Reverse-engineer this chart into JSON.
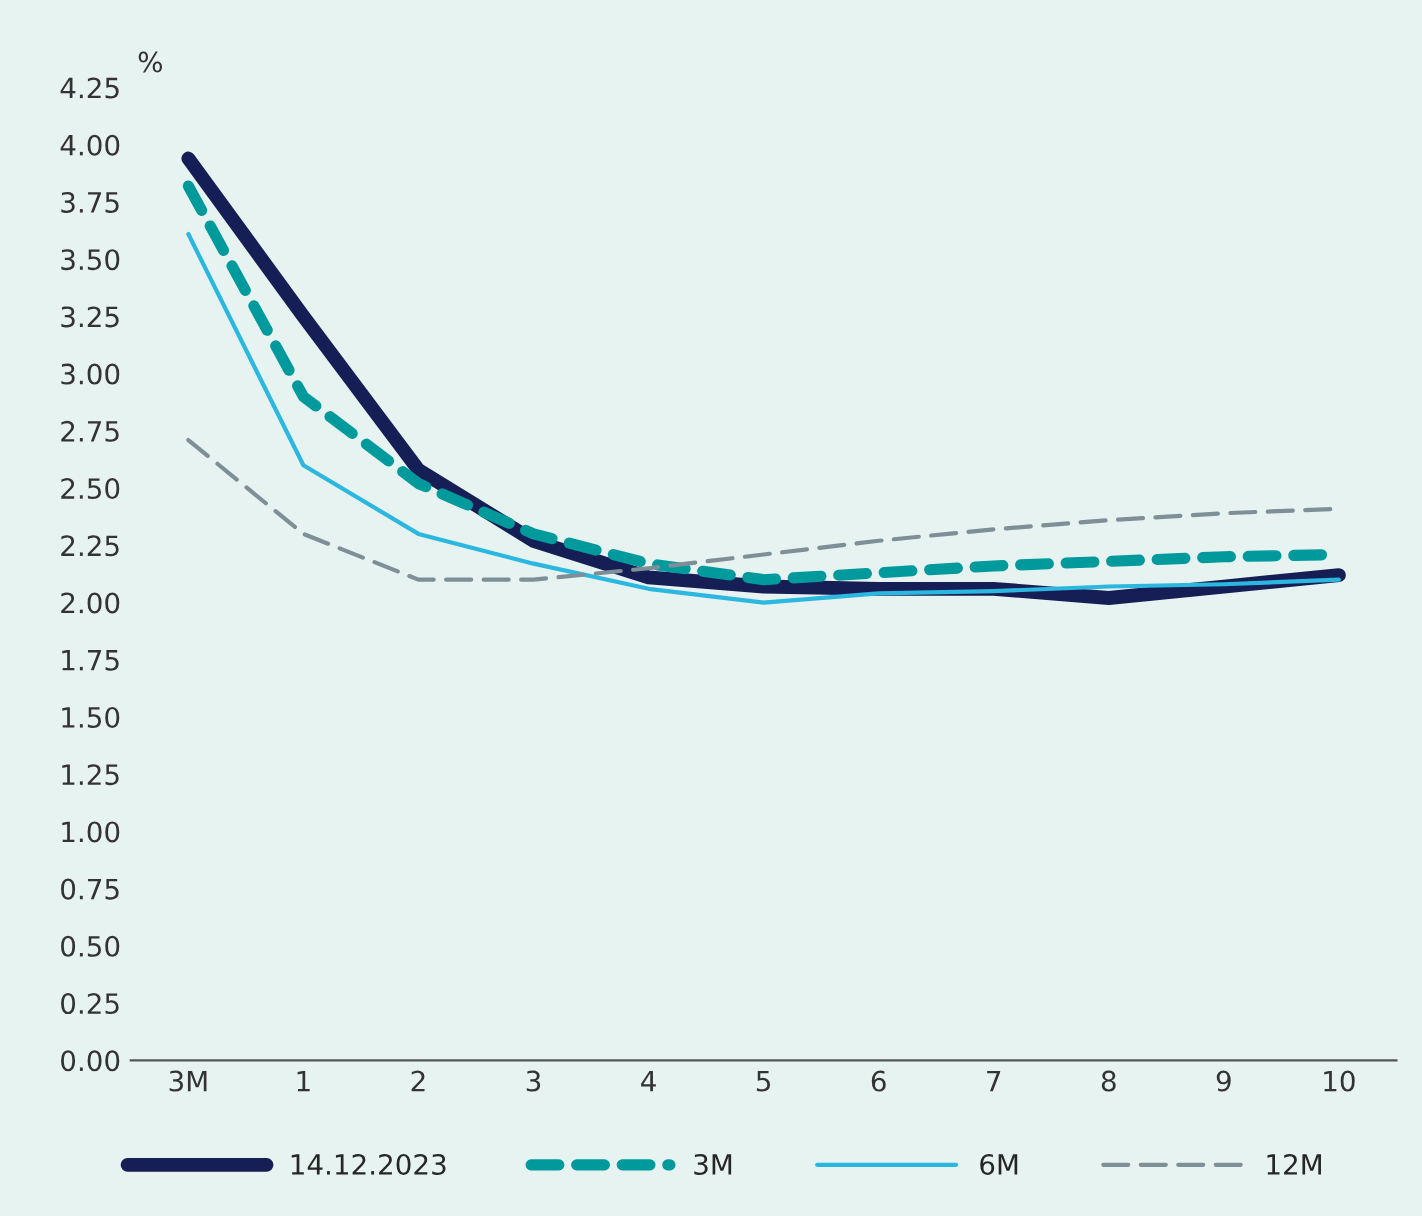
{
  "chart_data": {
    "type": "line",
    "ylabel": "%",
    "categories": [
      "3M",
      "1",
      "2",
      "3",
      "4",
      "5",
      "6",
      "7",
      "8",
      "9",
      "10"
    ],
    "ylim": [
      0,
      4.25
    ],
    "yticks": [
      {
        "value": 0,
        "label": "0.00"
      },
      {
        "value": 0.25,
        "label": "0.25"
      },
      {
        "value": 0.5,
        "label": "0.50"
      },
      {
        "value": 0.75,
        "label": "0.75"
      },
      {
        "value": 1,
        "label": "1.00"
      },
      {
        "value": 1.25,
        "label": "1.25"
      },
      {
        "value": 1.5,
        "label": "1.50"
      },
      {
        "value": 1.75,
        "label": "1.75"
      },
      {
        "value": 2,
        "label": "2.00"
      },
      {
        "value": 2.25,
        "label": "2.25"
      },
      {
        "value": 2.5,
        "label": "2.50"
      },
      {
        "value": 2.75,
        "label": "2.75"
      },
      {
        "value": 3,
        "label": "3.00"
      },
      {
        "value": 3.25,
        "label": "3.25"
      },
      {
        "value": 3.5,
        "label": "3.50"
      },
      {
        "value": 3.75,
        "label": "3.75"
      },
      {
        "value": 4,
        "label": "4.00"
      },
      {
        "value": 4.25,
        "label": "4.25"
      }
    ],
    "grid": false,
    "legend": "bottom",
    "marker": "none",
    "series": [
      {
        "name": "14.12.2023",
        "color": "#161f55",
        "line_style": "solid",
        "values": [
          3.94,
          3.25,
          2.58,
          2.27,
          2.11,
          2.07,
          2.06,
          2.06,
          2.02,
          2.07,
          2.12
        ]
      },
      {
        "name": "3M",
        "color": "#009a9c",
        "line_style": "dashed",
        "values": [
          3.82,
          2.9,
          2.52,
          2.3,
          2.17,
          2.1,
          2.13,
          2.16,
          2.18,
          2.2,
          2.21
        ]
      },
      {
        "name": "6M",
        "color": "#2bb7df",
        "line_style": "solid",
        "values": [
          3.61,
          2.6,
          2.3,
          2.17,
          2.06,
          2.0,
          2.04,
          2.05,
          2.07,
          2.08,
          2.1
        ]
      },
      {
        "name": "12M",
        "color": "#7f8f98",
        "line_style": "dashed",
        "values": [
          2.71,
          2.3,
          2.1,
          2.1,
          2.15,
          2.21,
          2.27,
          2.32,
          2.36,
          2.39,
          2.41
        ]
      }
    ]
  }
}
